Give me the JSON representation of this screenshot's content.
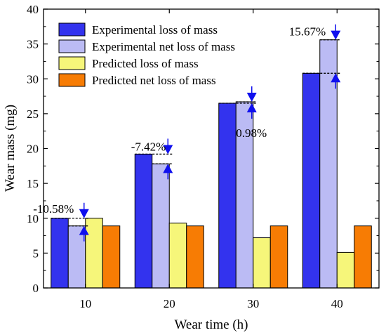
{
  "chart_data": {
    "type": "bar",
    "categories": [
      "10",
      "20",
      "30",
      "40"
    ],
    "series": [
      {
        "name": "Experimental loss of mass",
        "color": "#3333ee",
        "values": [
          10.0,
          19.2,
          26.5,
          30.8
        ]
      },
      {
        "name": "Experimental net loss of mass",
        "color": "#bbbbf4",
        "values": [
          8.9,
          17.8,
          26.7,
          35.6
        ]
      },
      {
        "name": "Predicted loss of mass",
        "color": "#f6f67a",
        "values": [
          10.0,
          9.3,
          7.2,
          5.1
        ]
      },
      {
        "name": "Predicted net loss of mass",
        "color": "#f77c04",
        "values": [
          8.9,
          8.9,
          8.9,
          8.9
        ]
      }
    ],
    "xlabel": "Wear time (h)",
    "ylabel": "Wear mass (mg)",
    "ylim": [
      0,
      40
    ],
    "yticks": [
      "0",
      "5",
      "10",
      "15",
      "20",
      "25",
      "30",
      "35",
      "40"
    ],
    "grid": false,
    "legend_position": "top-left",
    "annotations": [
      {
        "category": "10",
        "text": "-10.58%"
      },
      {
        "category": "20",
        "text": "-7.42%"
      },
      {
        "category": "30",
        "text": "0.98%"
      },
      {
        "category": "40",
        "text": "15.67%"
      }
    ],
    "arrow_color": "#1010ee"
  }
}
